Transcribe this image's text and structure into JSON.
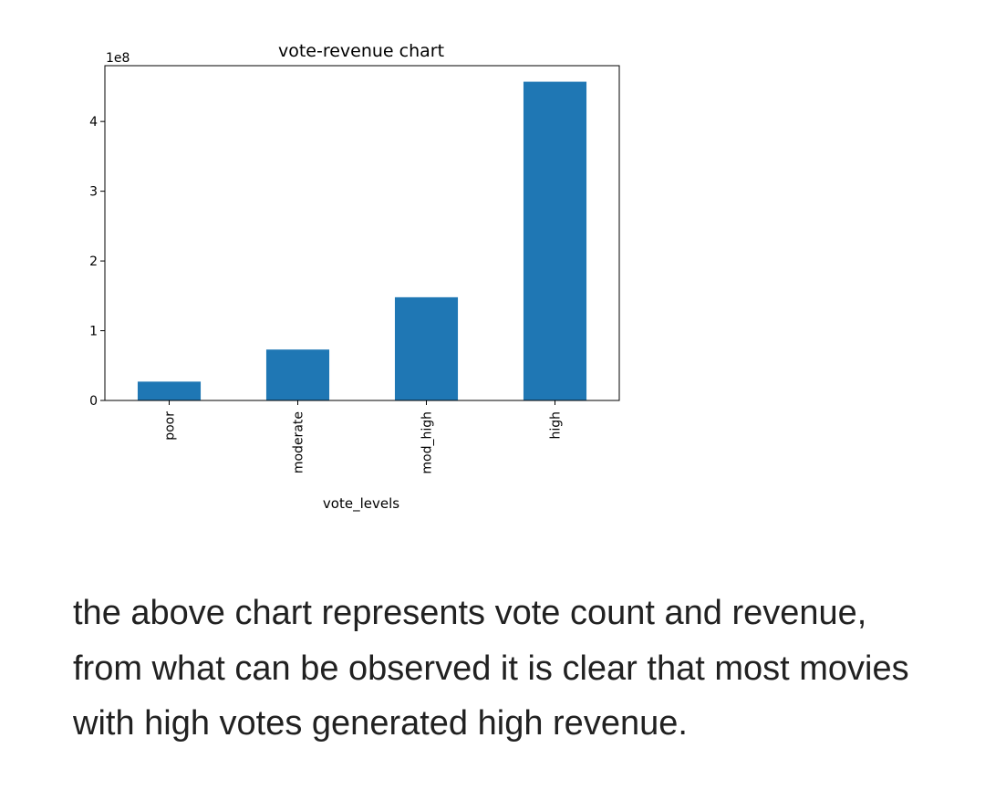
{
  "chart_data": {
    "type": "bar",
    "title": "vote-revenue chart",
    "xlabel": "vote_levels",
    "ylabel": "",
    "y_offset_label": "1e8",
    "categories": [
      "poor",
      "moderate",
      "mod_high",
      "high"
    ],
    "values": [
      27000000,
      73000000,
      148000000,
      457000000
    ],
    "yticks": [
      0,
      1,
      2,
      3,
      4
    ],
    "ylim": [
      0,
      480000000
    ],
    "bar_color": "#1f77b4",
    "grid": false,
    "legend": "none"
  },
  "caption": {
    "text": "the above chart represents vote count and revenue, from what can be observed it is clear that most movies with high votes generated high revenue."
  }
}
